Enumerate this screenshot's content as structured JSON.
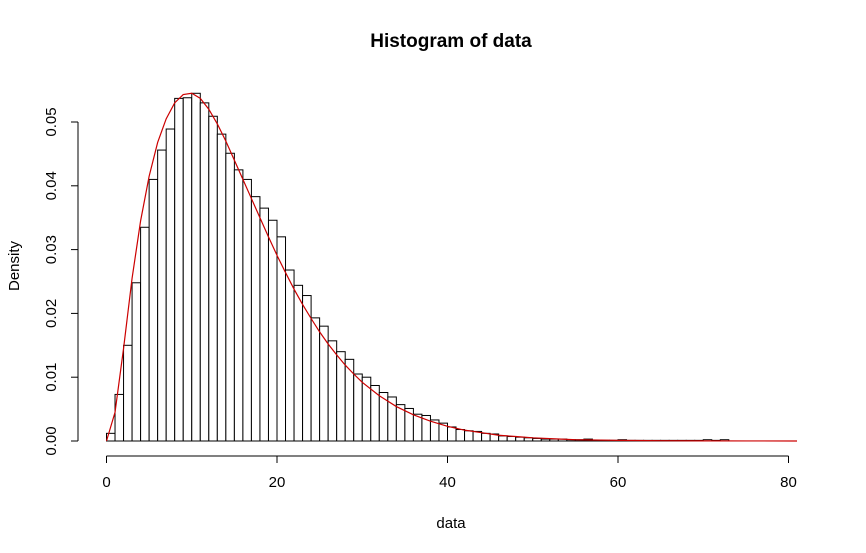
{
  "chart_data": {
    "type": "bar",
    "title": "Histogram of data",
    "xlabel": "data",
    "ylabel": "Density",
    "xlim": [
      0,
      81
    ],
    "ylim": [
      0,
      0.055
    ],
    "x_ticks": [
      0,
      20,
      40,
      60,
      80
    ],
    "x_tick_labels": [
      "0",
      "20",
      "40",
      "60",
      "80"
    ],
    "y_ticks": [
      0.0,
      0.01,
      0.02,
      0.03,
      0.04,
      0.05
    ],
    "y_tick_labels": [
      "0.00",
      "0.01",
      "0.02",
      "0.03",
      "0.04",
      "0.05"
    ],
    "grid": false,
    "legend": "none",
    "bin_width": 1,
    "bin_start": 0,
    "values": [
      0.0012,
      0.0073,
      0.015,
      0.0248,
      0.0335,
      0.041,
      0.0456,
      0.0489,
      0.0537,
      0.0538,
      0.0545,
      0.053,
      0.0509,
      0.0481,
      0.0451,
      0.0425,
      0.041,
      0.0383,
      0.0365,
      0.0346,
      0.032,
      0.0268,
      0.0244,
      0.0228,
      0.0193,
      0.018,
      0.0157,
      0.014,
      0.0128,
      0.0105,
      0.01,
      0.0087,
      0.0076,
      0.0069,
      0.0057,
      0.0051,
      0.0042,
      0.004,
      0.0033,
      0.0028,
      0.0022,
      0.0018,
      0.0016,
      0.0015,
      0.0012,
      0.0011,
      0.0008,
      0.0007,
      0.0006,
      0.0005,
      0.0004,
      0.0003,
      0.0003,
      0.0003,
      0.0002,
      0.0002,
      0.0003,
      0.0001,
      0.0001,
      0.0001,
      0.0002,
      0.0001,
      0.0001,
      0.0001,
      0.0001,
      0.0001,
      0.0001,
      0.0001,
      0.0001,
      0.0001,
      0.0002,
      0.0001,
      0.0002
    ],
    "series": [
      {
        "type": "line",
        "color": "#cc0000",
        "x": [
          0,
          1,
          2,
          3,
          4,
          5,
          6,
          7,
          8,
          9,
          10,
          11,
          12,
          13,
          14,
          15,
          16,
          17,
          18,
          19,
          20,
          21,
          22,
          23,
          24,
          25,
          26,
          27,
          28,
          29,
          30,
          32,
          34,
          36,
          38,
          40,
          42,
          44,
          46,
          48,
          50,
          55,
          60,
          65,
          70,
          75,
          81
        ],
        "y": [
          0.0,
          0.0045,
          0.0145,
          0.0255,
          0.0345,
          0.0415,
          0.0468,
          0.0505,
          0.053,
          0.0543,
          0.0545,
          0.0537,
          0.052,
          0.0497,
          0.047,
          0.044,
          0.041,
          0.038,
          0.035,
          0.032,
          0.0291,
          0.0264,
          0.0238,
          0.0214,
          0.0192,
          0.0171,
          0.0152,
          0.0135,
          0.0119,
          0.0105,
          0.0092,
          0.0071,
          0.0054,
          0.0041,
          0.0031,
          0.0023,
          0.0017,
          0.0013,
          0.0009,
          0.0007,
          0.0005,
          0.0002,
          0.0001,
          5e-05,
          2e-05,
          1e-05,
          0.0
        ]
      }
    ],
    "colors": {
      "bar_fill": "#ffffff",
      "bar_stroke": "#000000",
      "axis": "#000000"
    }
  }
}
